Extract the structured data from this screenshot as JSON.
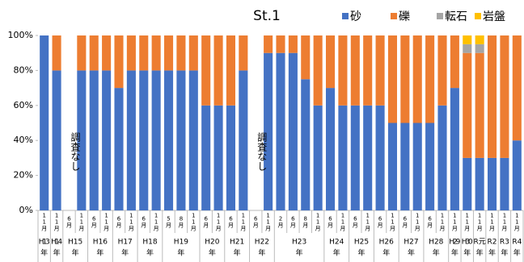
{
  "chart_data": {
    "type": "stacked_bar",
    "title": "St.1",
    "groups": [
      {
        "year": "H13",
        "unit": "年",
        "months": [
          "11月"
        ]
      },
      {
        "year": "H14",
        "unit": "年",
        "months": [
          "11月"
        ]
      },
      {
        "year": "H15",
        "unit": "年",
        "months": [
          "6月",
          "11月"
        ]
      },
      {
        "year": "H16",
        "unit": "年",
        "months": [
          "6月",
          "11月"
        ]
      },
      {
        "year": "H17",
        "unit": "年",
        "months": [
          "6月",
          "11月"
        ]
      },
      {
        "year": "H18",
        "unit": "年",
        "months": [
          "6月",
          "11月"
        ]
      },
      {
        "year": "H19",
        "unit": "年",
        "months": [
          "5月",
          "8月",
          "11月"
        ]
      },
      {
        "year": "H20",
        "unit": "年",
        "months": [
          "6月",
          "11月"
        ]
      },
      {
        "year": "H21",
        "unit": "年",
        "months": [
          "6月",
          "11月"
        ]
      },
      {
        "year": "H22",
        "unit": "年",
        "months": [
          "6月",
          "11月"
        ]
      },
      {
        "year": "H23",
        "unit": "年",
        "months": [
          "2月",
          "6月",
          "8月",
          "11月"
        ]
      },
      {
        "year": "H24",
        "unit": "年",
        "months": [
          "6月",
          "11月"
        ]
      },
      {
        "year": "H25",
        "unit": "年",
        "months": [
          "6月",
          "11月"
        ]
      },
      {
        "year": "H26",
        "unit": "年",
        "months": [
          "6月",
          "11月"
        ]
      },
      {
        "year": "H27",
        "unit": "年",
        "months": [
          "6月",
          "11月"
        ]
      },
      {
        "year": "H28",
        "unit": "年",
        "months": [
          "6月",
          "11月"
        ]
      },
      {
        "year": "H29",
        "unit": "年",
        "months": [
          "11月"
        ]
      },
      {
        "year": "H30",
        "unit": "年",
        "months": [
          "11月"
        ]
      },
      {
        "year": "R元",
        "unit": "年",
        "months": [
          "11月"
        ]
      },
      {
        "year": "R2",
        "unit": "年",
        "months": [
          "11月"
        ]
      },
      {
        "year": "R3",
        "unit": "年",
        "months": [
          "11月"
        ]
      },
      {
        "year": "R4",
        "unit": "年",
        "months": [
          "11月"
        ]
      }
    ],
    "series": [
      {
        "name": "砂",
        "color": "#4472c4",
        "values": [
          100,
          80,
          null,
          80,
          80,
          80,
          70,
          80,
          80,
          80,
          80,
          80,
          80,
          60,
          60,
          60,
          80,
          null,
          90,
          90,
          90,
          75,
          60,
          70,
          60,
          60,
          60,
          60,
          50,
          50,
          50,
          50,
          60,
          70,
          30,
          30,
          30,
          30,
          40
        ]
      },
      {
        "name": "礫",
        "color": "#ed7d31",
        "values": [
          0,
          20,
          null,
          20,
          20,
          20,
          30,
          20,
          20,
          20,
          20,
          20,
          20,
          40,
          40,
          40,
          20,
          null,
          10,
          10,
          10,
          25,
          40,
          30,
          40,
          40,
          40,
          40,
          50,
          50,
          50,
          50,
          40,
          30,
          60,
          60,
          70,
          70,
          60
        ]
      },
      {
        "name": "転石",
        "color": "#a5a5a5",
        "values": [
          0,
          0,
          null,
          0,
          0,
          0,
          0,
          0,
          0,
          0,
          0,
          0,
          0,
          0,
          0,
          0,
          0,
          null,
          0,
          0,
          0,
          0,
          0,
          0,
          0,
          0,
          0,
          0,
          0,
          0,
          0,
          0,
          0,
          0,
          5,
          5,
          0,
          0,
          0
        ]
      },
      {
        "name": "岩盤",
        "color": "#ffc000",
        "values": [
          0,
          0,
          null,
          0,
          0,
          0,
          0,
          0,
          0,
          0,
          0,
          0,
          0,
          0,
          0,
          0,
          0,
          null,
          0,
          0,
          0,
          0,
          0,
          0,
          0,
          0,
          0,
          0,
          0,
          0,
          0,
          0,
          0,
          0,
          5,
          5,
          0,
          0,
          0
        ]
      }
    ],
    "annotations": [
      "調査なし",
      "調査なし"
    ],
    "ylim": [
      0,
      100
    ],
    "yticks": [
      {
        "value": 0,
        "label": "0%"
      },
      {
        "value": 20,
        "label": "20%"
      },
      {
        "value": 40,
        "label": "40%"
      },
      {
        "value": 60,
        "label": "60%"
      },
      {
        "value": 80,
        "label": "80%"
      },
      {
        "value": 100,
        "label": "100%"
      }
    ],
    "legend": "top-right"
  }
}
